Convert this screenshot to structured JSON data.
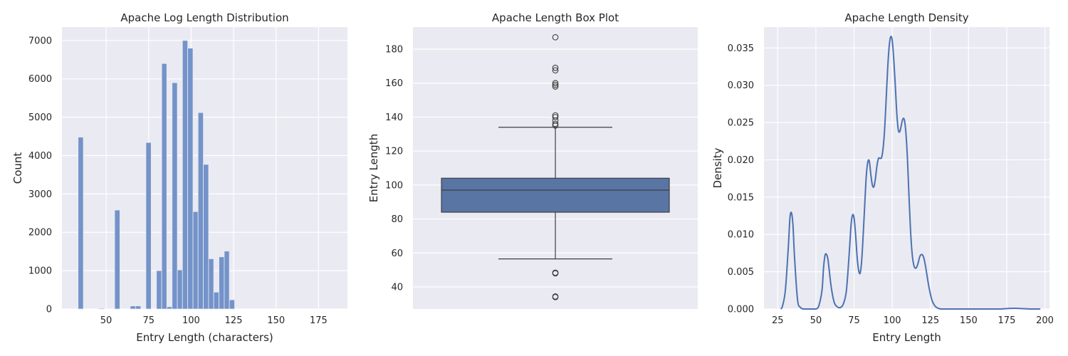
{
  "colors": {
    "panel_background": "#eaeaf2",
    "grid": "#ffffff",
    "histogram_bar": "#7393c9",
    "box_fill": "#5875a4",
    "line": "#4c72b0",
    "box_edge": "#3f3f3f"
  },
  "chart_data": [
    {
      "type": "bar",
      "title": "Apache Log Length Distribution",
      "xlabel": "Entry Length (characters)",
      "ylabel": "Count",
      "xlim": [
        24,
        192
      ],
      "ylim": [
        0,
        7350
      ],
      "xticks": [
        50,
        75,
        100,
        125,
        150,
        175
      ],
      "yticks": [
        0,
        1000,
        2000,
        3000,
        4000,
        5000,
        6000,
        7000
      ],
      "grid": true,
      "bins": [
        {
          "x0": 33.5,
          "x1": 36.6,
          "count": 4480
        },
        {
          "x0": 45.8,
          "x1": 48.9,
          "count": 20
        },
        {
          "x0": 55.0,
          "x1": 58.1,
          "count": 2580
        },
        {
          "x0": 64.2,
          "x1": 67.3,
          "count": 80
        },
        {
          "x0": 67.3,
          "x1": 70.4,
          "count": 80
        },
        {
          "x0": 73.4,
          "x1": 76.5,
          "count": 4340
        },
        {
          "x0": 79.6,
          "x1": 82.7,
          "count": 1000
        },
        {
          "x0": 82.7,
          "x1": 85.7,
          "count": 6400
        },
        {
          "x0": 85.7,
          "x1": 88.8,
          "count": 60
        },
        {
          "x0": 88.8,
          "x1": 91.9,
          "count": 5900
        },
        {
          "x0": 91.9,
          "x1": 94.9,
          "count": 1020
        },
        {
          "x0": 94.9,
          "x1": 98.0,
          "count": 7000
        },
        {
          "x0": 98.0,
          "x1": 101.1,
          "count": 6800
        },
        {
          "x0": 101.1,
          "x1": 104.1,
          "count": 2540
        },
        {
          "x0": 104.1,
          "x1": 107.2,
          "count": 5120
        },
        {
          "x0": 107.2,
          "x1": 110.3,
          "count": 3770
        },
        {
          "x0": 110.3,
          "x1": 113.3,
          "count": 1310
        },
        {
          "x0": 113.3,
          "x1": 116.4,
          "count": 440
        },
        {
          "x0": 116.4,
          "x1": 119.5,
          "count": 1360
        },
        {
          "x0": 119.5,
          "x1": 122.5,
          "count": 1510
        },
        {
          "x0": 122.5,
          "x1": 125.6,
          "count": 240
        }
      ]
    },
    {
      "type": "box",
      "title": "Apache Length Box Plot",
      "xlabel": "",
      "ylabel": "Entry Length",
      "ylim": [
        27,
        193
      ],
      "yticks": [
        40,
        60,
        80,
        100,
        120,
        140,
        160,
        180
      ],
      "grid": true,
      "whisker_low": 56.5,
      "q1": 84,
      "median": 97,
      "q3": 104,
      "whisker_high": 134,
      "outliers": [
        34,
        34.4,
        48,
        48.4,
        135,
        136,
        138,
        140,
        141,
        158,
        159,
        160,
        167.5,
        169,
        187
      ]
    },
    {
      "type": "line",
      "title": "Apache Length Density",
      "xlabel": "Entry Length",
      "ylabel": "Density",
      "xlim": [
        16,
        203
      ],
      "ylim": [
        0,
        0.0378
      ],
      "xticks": [
        25,
        50,
        75,
        100,
        125,
        150,
        175,
        200
      ],
      "yticks": [
        0.0,
        0.005,
        0.01,
        0.015,
        0.02,
        0.025,
        0.03,
        0.035
      ],
      "ytick_labels": [
        "0.000",
        "0.005",
        "0.010",
        "0.015",
        "0.020",
        "0.025",
        "0.030",
        "0.035"
      ],
      "grid": true,
      "x": [
        27,
        28,
        30,
        32,
        33,
        34,
        35,
        36,
        38,
        40,
        42,
        45,
        50,
        52,
        54,
        55,
        56,
        57,
        58,
        60,
        62,
        64,
        66,
        68,
        70,
        72,
        73,
        74,
        75,
        76,
        77,
        78,
        79,
        80,
        81,
        82,
        83,
        84,
        85,
        86,
        87,
        88,
        89,
        90,
        91,
        92,
        93,
        94,
        95,
        96,
        97,
        98,
        99,
        100,
        101,
        102,
        103,
        104,
        105,
        106,
        107,
        108,
        109,
        110,
        111,
        112,
        113,
        114,
        115,
        116,
        117,
        118,
        119,
        120,
        121,
        122,
        124,
        126,
        128,
        130,
        132,
        135,
        140,
        150,
        160,
        170,
        180,
        190,
        197
      ],
      "y": [
        0.0,
        0.0003,
        0.0025,
        0.0085,
        0.0122,
        0.0129,
        0.0112,
        0.007,
        0.0012,
        0.0002,
        0.0,
        0.0,
        0.0,
        0.0005,
        0.0025,
        0.0055,
        0.0072,
        0.0073,
        0.0065,
        0.003,
        0.0009,
        0.0003,
        0.0002,
        0.0007,
        0.0025,
        0.008,
        0.0112,
        0.0126,
        0.0122,
        0.01,
        0.007,
        0.0052,
        0.0048,
        0.0065,
        0.01,
        0.014,
        0.0178,
        0.0197,
        0.0198,
        0.018,
        0.0166,
        0.0164,
        0.0175,
        0.0192,
        0.0202,
        0.0202,
        0.0203,
        0.0215,
        0.024,
        0.028,
        0.0322,
        0.0352,
        0.0365,
        0.036,
        0.0335,
        0.03,
        0.0262,
        0.024,
        0.0238,
        0.0247,
        0.0255,
        0.0253,
        0.0235,
        0.02,
        0.015,
        0.0105,
        0.0075,
        0.006,
        0.0055,
        0.0056,
        0.0062,
        0.007,
        0.0073,
        0.0072,
        0.0066,
        0.0055,
        0.003,
        0.0012,
        0.0004,
        0.0001,
        0.0,
        0.0,
        0.0,
        0.0,
        0.0,
        0.0,
        0.0001,
        0.0,
        0.0
      ]
    }
  ]
}
